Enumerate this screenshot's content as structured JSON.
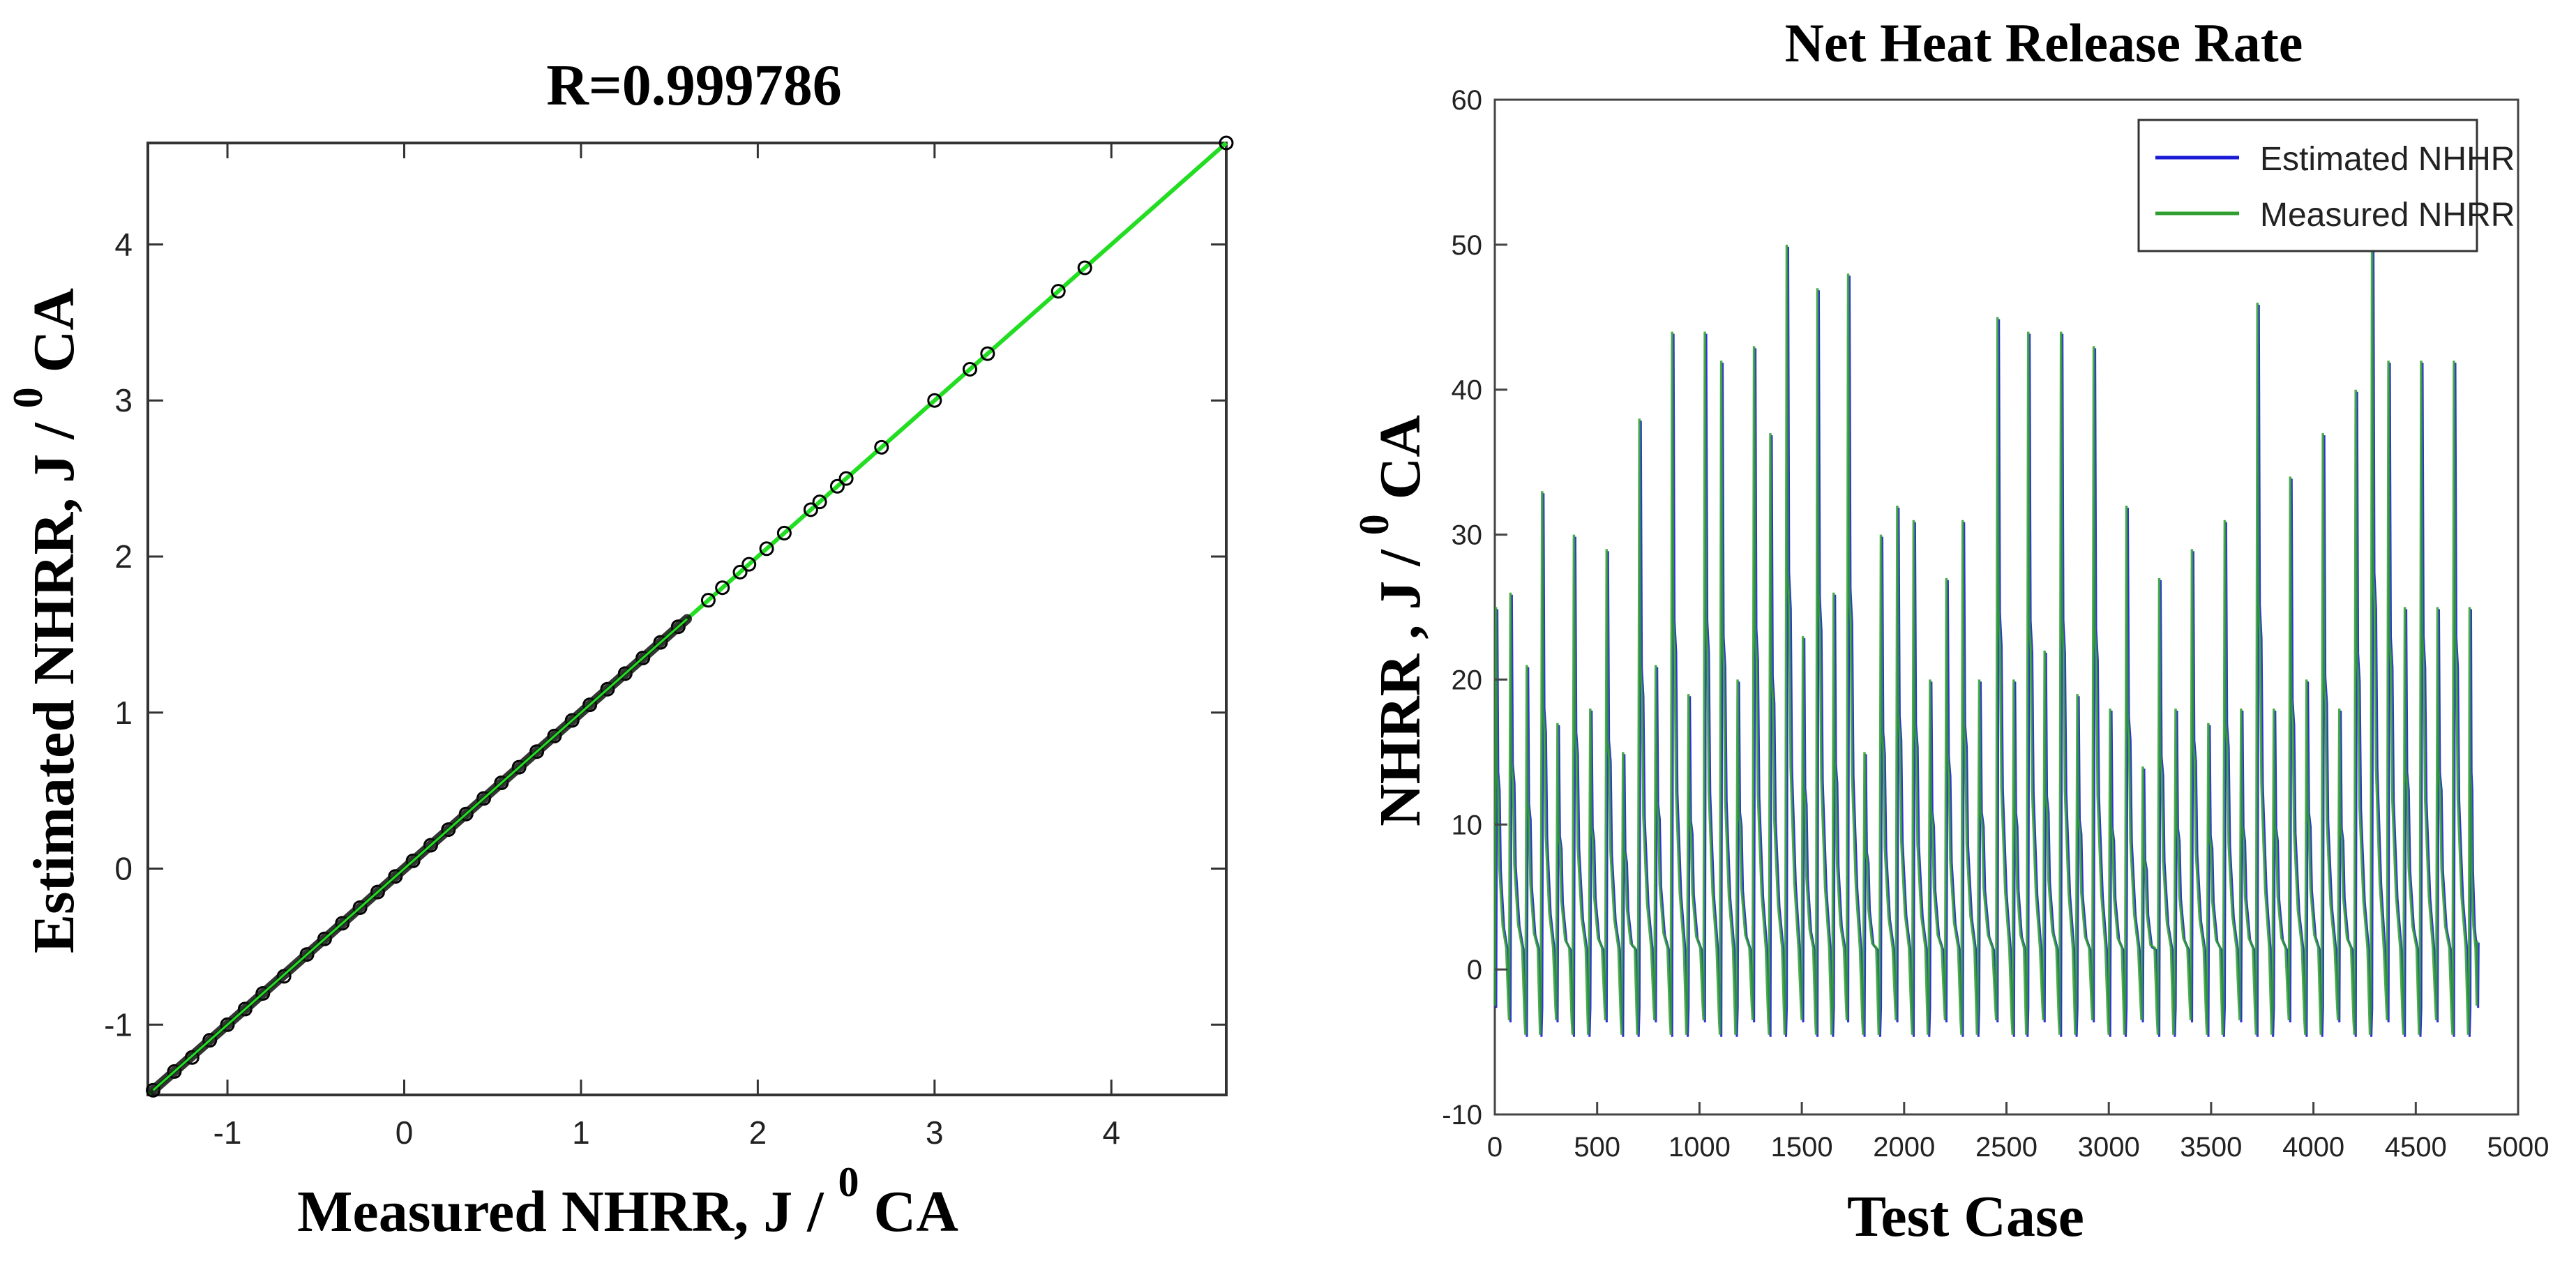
{
  "chart_data": [
    {
      "type": "scatter",
      "title": "R=0.999786",
      "xlabel": "Measured NHRR, J / ",
      "xlabel_sup": "0",
      "xlabel_tail": " CA",
      "ylabel": "Estimated NHRR, J / ",
      "ylabel_sup": "0",
      "ylabel_tail": " CA",
      "xlim": [
        -1.45,
        4.65
      ],
      "ylim": [
        -1.45,
        4.65
      ],
      "xticks": [
        -1,
        0,
        1,
        2,
        3,
        4
      ],
      "yticks": [
        -1,
        0,
        1,
        2,
        3,
        4
      ],
      "grid": false,
      "fit_line": {
        "from": [
          -1.45,
          -1.45
        ],
        "to": [
          4.65,
          4.65
        ],
        "color": "#22dd22"
      },
      "points": [
        [
          -1.42,
          -1.42
        ],
        [
          -1.3,
          -1.3
        ],
        [
          -1.2,
          -1.21
        ],
        [
          -1.1,
          -1.1
        ],
        [
          -1.0,
          -1.0
        ],
        [
          -0.9,
          -0.9
        ],
        [
          -0.8,
          -0.8
        ],
        [
          -0.68,
          -0.69
        ],
        [
          -0.55,
          -0.55
        ],
        [
          -0.45,
          -0.45
        ],
        [
          -0.35,
          -0.35
        ],
        [
          -0.25,
          -0.25
        ],
        [
          -0.15,
          -0.15
        ],
        [
          -0.05,
          -0.05
        ],
        [
          0.05,
          0.05
        ],
        [
          0.15,
          0.15
        ],
        [
          0.25,
          0.25
        ],
        [
          0.35,
          0.35
        ],
        [
          0.45,
          0.45
        ],
        [
          0.55,
          0.55
        ],
        [
          0.65,
          0.65
        ],
        [
          0.75,
          0.75
        ],
        [
          0.85,
          0.85
        ],
        [
          0.95,
          0.95
        ],
        [
          1.05,
          1.05
        ],
        [
          1.15,
          1.15
        ],
        [
          1.25,
          1.25
        ],
        [
          1.35,
          1.35
        ],
        [
          1.45,
          1.45
        ],
        [
          1.55,
          1.55
        ],
        [
          1.72,
          1.72
        ],
        [
          1.8,
          1.8
        ],
        [
          1.9,
          1.9
        ],
        [
          1.95,
          1.95
        ],
        [
          2.05,
          2.05
        ],
        [
          2.15,
          2.15
        ],
        [
          2.3,
          2.3
        ],
        [
          2.35,
          2.35
        ],
        [
          2.45,
          2.45
        ],
        [
          2.5,
          2.5
        ],
        [
          2.7,
          2.7
        ],
        [
          3.0,
          3.0
        ],
        [
          3.2,
          3.2
        ],
        [
          3.3,
          3.3
        ],
        [
          3.7,
          3.7
        ],
        [
          3.85,
          3.85
        ],
        [
          4.65,
          4.65
        ]
      ],
      "point_color": "#000000"
    },
    {
      "type": "line",
      "title": "Net Heat Release Rate",
      "xlabel": "Test Case",
      "ylabel": "NHRR , J / ",
      "ylabel_sup": "0",
      "ylabel_tail": " CA",
      "xlim": [
        0,
        5000
      ],
      "ylim": [
        -10,
        60
      ],
      "xticks": [
        0,
        500,
        1000,
        1500,
        2000,
        2500,
        3000,
        3500,
        4000,
        4500,
        5000
      ],
      "yticks": [
        -10,
        0,
        10,
        20,
        30,
        40,
        50,
        60
      ],
      "grid": false,
      "legend_position": "top-right",
      "series": [
        {
          "name": "Estimated NHHR",
          "color": "#1a1ad6"
        },
        {
          "name": "Measured NHRR",
          "color": "#2e9e2e"
        }
      ],
      "x_end": 4800,
      "cycles": [
        {
          "x": 0,
          "peak": 25
        },
        {
          "x": 70,
          "peak": 26
        },
        {
          "x": 150,
          "peak": 21
        },
        {
          "x": 225,
          "peak": 33
        },
        {
          "x": 300,
          "peak": 17
        },
        {
          "x": 380,
          "peak": 30
        },
        {
          "x": 460,
          "peak": 18
        },
        {
          "x": 540,
          "peak": 29
        },
        {
          "x": 620,
          "peak": 15
        },
        {
          "x": 700,
          "peak": 38
        },
        {
          "x": 780,
          "peak": 21
        },
        {
          "x": 860,
          "peak": 44
        },
        {
          "x": 940,
          "peak": 19
        },
        {
          "x": 1020,
          "peak": 44
        },
        {
          "x": 1100,
          "peak": 42
        },
        {
          "x": 1180,
          "peak": 20
        },
        {
          "x": 1260,
          "peak": 43
        },
        {
          "x": 1340,
          "peak": 37
        },
        {
          "x": 1420,
          "peak": 50
        },
        {
          "x": 1500,
          "peak": 23
        },
        {
          "x": 1570,
          "peak": 47
        },
        {
          "x": 1650,
          "peak": 26
        },
        {
          "x": 1720,
          "peak": 48
        },
        {
          "x": 1800,
          "peak": 15
        },
        {
          "x": 1880,
          "peak": 30
        },
        {
          "x": 1960,
          "peak": 32
        },
        {
          "x": 2040,
          "peak": 31
        },
        {
          "x": 2120,
          "peak": 20
        },
        {
          "x": 2200,
          "peak": 27
        },
        {
          "x": 2280,
          "peak": 31
        },
        {
          "x": 2360,
          "peak": 20
        },
        {
          "x": 2450,
          "peak": 45
        },
        {
          "x": 2530,
          "peak": 20
        },
        {
          "x": 2600,
          "peak": 44
        },
        {
          "x": 2680,
          "peak": 22
        },
        {
          "x": 2760,
          "peak": 44
        },
        {
          "x": 2840,
          "peak": 19
        },
        {
          "x": 2920,
          "peak": 43
        },
        {
          "x": 3000,
          "peak": 18
        },
        {
          "x": 3080,
          "peak": 32
        },
        {
          "x": 3160,
          "peak": 14
        },
        {
          "x": 3240,
          "peak": 27
        },
        {
          "x": 3320,
          "peak": 18
        },
        {
          "x": 3400,
          "peak": 29
        },
        {
          "x": 3480,
          "peak": 17
        },
        {
          "x": 3560,
          "peak": 31
        },
        {
          "x": 3640,
          "peak": 18
        },
        {
          "x": 3720,
          "peak": 46
        },
        {
          "x": 3800,
          "peak": 18
        },
        {
          "x": 3880,
          "peak": 34
        },
        {
          "x": 3960,
          "peak": 20
        },
        {
          "x": 4040,
          "peak": 37
        },
        {
          "x": 4120,
          "peak": 18
        },
        {
          "x": 4200,
          "peak": 40
        },
        {
          "x": 4280,
          "peak": 50
        },
        {
          "x": 4360,
          "peak": 42
        },
        {
          "x": 4440,
          "peak": 25
        },
        {
          "x": 4520,
          "peak": 42
        },
        {
          "x": 4600,
          "peak": 25
        },
        {
          "x": 4680,
          "peak": 42
        },
        {
          "x": 4760,
          "peak": 25
        }
      ]
    }
  ]
}
